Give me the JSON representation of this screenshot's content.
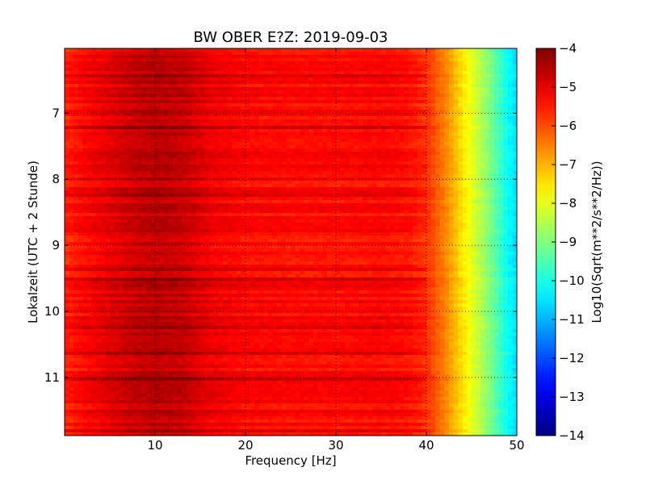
{
  "chart_data": {
    "type": "heatmap",
    "title": "BW OBER E?Z: 2019-09-03",
    "xlabel": "Frequency [Hz]",
    "ylabel": "Lokalzeit (UTC + 2 Stunde)",
    "colorbar_label": "Log10(Sqrt(m**2/s**2/Hz))",
    "colormap": "jet",
    "xlim": [
      0,
      50
    ],
    "ylim": [
      11.88,
      6.02
    ],
    "x_ticks": [
      10,
      20,
      30,
      40,
      50
    ],
    "x_tick_labels": [
      "10",
      "20",
      "30",
      "40",
      "50"
    ],
    "y_ticks": [
      7,
      8,
      9,
      10,
      11
    ],
    "y_tick_labels": [
      "7",
      "8",
      "9",
      "10",
      "11"
    ],
    "clim": [
      -14,
      -4
    ],
    "colorbar_ticks": [
      -4,
      -5,
      -6,
      -7,
      -8,
      -9,
      -10,
      -11,
      -12,
      -13,
      -14
    ],
    "colorbar_tick_labels": [
      "−4",
      "−5",
      "−6",
      "−7",
      "−8",
      "−9",
      "−10",
      "−11",
      "−12",
      "−13",
      "−14"
    ],
    "grid": "dotted",
    "frequency_profile": [
      {
        "freq": 0,
        "value": -5.6
      },
      {
        "freq": 2,
        "value": -5.3
      },
      {
        "freq": 5,
        "value": -5.0
      },
      {
        "freq": 8,
        "value": -4.7
      },
      {
        "freq": 10,
        "value": -4.6
      },
      {
        "freq": 13,
        "value": -4.7
      },
      {
        "freq": 16,
        "value": -5.1
      },
      {
        "freq": 20,
        "value": -5.3
      },
      {
        "freq": 25,
        "value": -5.35
      },
      {
        "freq": 30,
        "value": -5.35
      },
      {
        "freq": 35,
        "value": -5.3
      },
      {
        "freq": 38,
        "value": -5.4
      },
      {
        "freq": 40,
        "value": -5.7
      },
      {
        "freq": 41,
        "value": -6.1
      },
      {
        "freq": 42,
        "value": -6.5
      },
      {
        "freq": 43,
        "value": -7.0
      },
      {
        "freq": 44,
        "value": -7.5
      },
      {
        "freq": 45,
        "value": -8.0
      },
      {
        "freq": 46,
        "value": -8.5
      },
      {
        "freq": 47,
        "value": -9.0
      },
      {
        "freq": 48,
        "value": -9.6
      },
      {
        "freq": 49,
        "value": -10.2
      },
      {
        "freq": 50,
        "value": -10.6
      }
    ]
  }
}
